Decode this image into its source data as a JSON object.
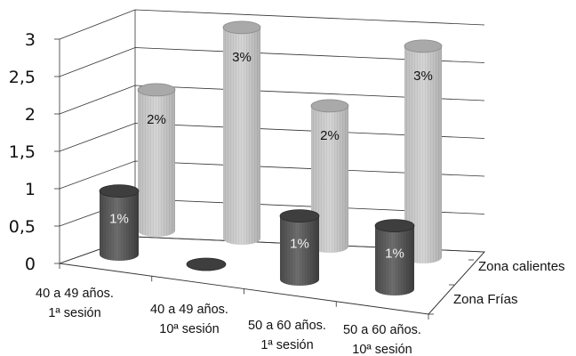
{
  "chart_data": {
    "type": "bar",
    "style": "3d-cylinder",
    "title": "",
    "xlabel": "",
    "ylabel": "",
    "ylim": [
      0,
      3
    ],
    "yticks": [
      "0",
      "0,5",
      "1",
      "1,5",
      "2",
      "2,5",
      "3"
    ],
    "categories": [
      [
        "40 a 49 años.",
        "1ª sesión"
      ],
      [
        "40 a 49 años.",
        "10ª sesión"
      ],
      [
        "50 a 60 años.",
        "1ª sesión"
      ],
      [
        "50 a 60 años.",
        "10ª sesión"
      ]
    ],
    "series": [
      {
        "name": "Zona Frías",
        "color": "#5a5a5a",
        "values": [
          1,
          0,
          1,
          1
        ],
        "labels": [
          "1%",
          "",
          "1%",
          "1%"
        ]
      },
      {
        "name": "Zona calientes",
        "color": "#c8c8c8",
        "values": [
          2,
          3,
          2,
          3
        ],
        "labels": [
          "2%",
          "3%",
          "2%",
          "3%"
        ]
      }
    ],
    "grid": true,
    "legend": "right"
  }
}
